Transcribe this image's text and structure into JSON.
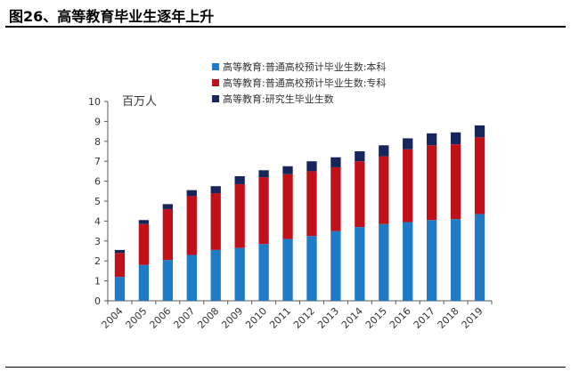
{
  "figure": {
    "title": "图26、高等教育毕业生逐年上升"
  },
  "chart_data": {
    "type": "bar",
    "stacked": true,
    "title": "图26、高等教育毕业生逐年上升",
    "ylabel": "百万人",
    "xlabel": "",
    "ylim": [
      0,
      10
    ],
    "yticks": [
      "0",
      "1",
      "2",
      "3",
      "4",
      "5",
      "6",
      "7",
      "8",
      "9",
      "10"
    ],
    "categories": [
      "2004",
      "2005",
      "2006",
      "2007",
      "2008",
      "2009",
      "2010",
      "2011",
      "2012",
      "2013",
      "2014",
      "2015",
      "2016",
      "2017",
      "2018",
      "2019"
    ],
    "legend_position": "top-right",
    "series": [
      {
        "name": "高等教育:普通高校预计毕业生数:本科",
        "color": "#1f7bc6",
        "values": [
          1.2,
          1.8,
          2.05,
          2.3,
          2.55,
          2.65,
          2.85,
          3.1,
          3.25,
          3.5,
          3.7,
          3.85,
          3.95,
          4.05,
          4.1,
          4.35
        ]
      },
      {
        "name": "高等教育:普通高校预计毕业生数:专科",
        "color": "#c0111b",
        "values": [
          1.2,
          2.05,
          2.55,
          2.95,
          2.85,
          3.2,
          3.35,
          3.25,
          3.25,
          3.2,
          3.3,
          3.4,
          3.65,
          3.75,
          3.75,
          3.85
        ]
      },
      {
        "name": "高等教育:研究生毕业生数",
        "color": "#16255b",
        "values": [
          0.15,
          0.2,
          0.25,
          0.3,
          0.35,
          0.4,
          0.35,
          0.4,
          0.5,
          0.5,
          0.5,
          0.55,
          0.55,
          0.6,
          0.6,
          0.6
        ]
      }
    ]
  }
}
